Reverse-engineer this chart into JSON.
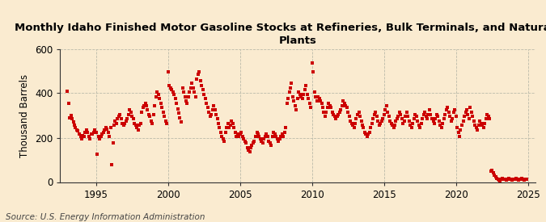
{
  "title": "Monthly Idaho Finished Motor Gasoline Stocks at Refineries, Bulk Terminals, and Natural Gas\nPlants",
  "ylabel": "Thousand Barrels",
  "source": "Source: U.S. Energy Information Administration",
  "background_color": "#faebd0",
  "plot_bg_color": "#faebd0",
  "dot_color": "#cc0000",
  "dot_size": 7,
  "xlim": [
    1992.5,
    2025.5
  ],
  "ylim": [
    0,
    600
  ],
  "yticks": [
    0,
    200,
    400,
    600
  ],
  "xticks": [
    1995,
    2000,
    2005,
    2010,
    2015,
    2020,
    2025
  ],
  "data": [
    [
      1993.0,
      410
    ],
    [
      1993.08,
      355
    ],
    [
      1993.17,
      290
    ],
    [
      1993.25,
      300
    ],
    [
      1993.33,
      285
    ],
    [
      1993.42,
      270
    ],
    [
      1993.5,
      255
    ],
    [
      1993.58,
      245
    ],
    [
      1993.67,
      235
    ],
    [
      1993.75,
      230
    ],
    [
      1993.83,
      215
    ],
    [
      1993.92,
      205
    ],
    [
      1994.0,
      195
    ],
    [
      1994.08,
      210
    ],
    [
      1994.17,
      205
    ],
    [
      1994.25,
      225
    ],
    [
      1994.33,
      235
    ],
    [
      1994.42,
      225
    ],
    [
      1994.5,
      205
    ],
    [
      1994.58,
      195
    ],
    [
      1994.67,
      215
    ],
    [
      1994.75,
      215
    ],
    [
      1994.83,
      225
    ],
    [
      1994.92,
      235
    ],
    [
      1995.0,
      225
    ],
    [
      1995.08,
      125
    ],
    [
      1995.17,
      205
    ],
    [
      1995.25,
      195
    ],
    [
      1995.33,
      205
    ],
    [
      1995.42,
      215
    ],
    [
      1995.5,
      225
    ],
    [
      1995.58,
      235
    ],
    [
      1995.67,
      245
    ],
    [
      1995.75,
      240
    ],
    [
      1995.83,
      225
    ],
    [
      1995.92,
      205
    ],
    [
      1996.0,
      245
    ],
    [
      1996.08,
      78
    ],
    [
      1996.17,
      175
    ],
    [
      1996.25,
      255
    ],
    [
      1996.33,
      275
    ],
    [
      1996.42,
      265
    ],
    [
      1996.5,
      285
    ],
    [
      1996.58,
      295
    ],
    [
      1996.67,
      305
    ],
    [
      1996.75,
      285
    ],
    [
      1996.83,
      265
    ],
    [
      1996.92,
      255
    ],
    [
      1997.0,
      265
    ],
    [
      1997.08,
      275
    ],
    [
      1997.17,
      285
    ],
    [
      1997.25,
      305
    ],
    [
      1997.33,
      325
    ],
    [
      1997.42,
      315
    ],
    [
      1997.5,
      295
    ],
    [
      1997.58,
      285
    ],
    [
      1997.67,
      265
    ],
    [
      1997.75,
      255
    ],
    [
      1997.83,
      245
    ],
    [
      1997.92,
      235
    ],
    [
      1998.0,
      255
    ],
    [
      1998.08,
      265
    ],
    [
      1998.17,
      315
    ],
    [
      1998.25,
      335
    ],
    [
      1998.33,
      345
    ],
    [
      1998.42,
      355
    ],
    [
      1998.5,
      345
    ],
    [
      1998.58,
      325
    ],
    [
      1998.67,
      305
    ],
    [
      1998.75,
      295
    ],
    [
      1998.83,
      275
    ],
    [
      1998.92,
      265
    ],
    [
      1999.0,
      305
    ],
    [
      1999.08,
      345
    ],
    [
      1999.17,
      385
    ],
    [
      1999.25,
      405
    ],
    [
      1999.33,
      395
    ],
    [
      1999.42,
      375
    ],
    [
      1999.5,
      355
    ],
    [
      1999.58,
      335
    ],
    [
      1999.67,
      315
    ],
    [
      1999.75,
      295
    ],
    [
      1999.83,
      275
    ],
    [
      1999.92,
      265
    ],
    [
      2000.0,
      495
    ],
    [
      2000.08,
      435
    ],
    [
      2000.17,
      425
    ],
    [
      2000.25,
      415
    ],
    [
      2000.33,
      405
    ],
    [
      2000.42,
      395
    ],
    [
      2000.5,
      375
    ],
    [
      2000.58,
      355
    ],
    [
      2000.67,
      330
    ],
    [
      2000.75,
      310
    ],
    [
      2000.83,
      290
    ],
    [
      2000.92,
      270
    ],
    [
      2001.0,
      425
    ],
    [
      2001.08,
      405
    ],
    [
      2001.17,
      385
    ],
    [
      2001.25,
      365
    ],
    [
      2001.33,
      355
    ],
    [
      2001.42,
      385
    ],
    [
      2001.5,
      405
    ],
    [
      2001.58,
      425
    ],
    [
      2001.67,
      445
    ],
    [
      2001.75,
      425
    ],
    [
      2001.83,
      405
    ],
    [
      2001.92,
      385
    ],
    [
      2002.0,
      465
    ],
    [
      2002.08,
      485
    ],
    [
      2002.17,
      495
    ],
    [
      2002.25,
      455
    ],
    [
      2002.33,
      435
    ],
    [
      2002.42,
      415
    ],
    [
      2002.5,
      395
    ],
    [
      2002.58,
      375
    ],
    [
      2002.67,
      355
    ],
    [
      2002.75,
      335
    ],
    [
      2002.83,
      315
    ],
    [
      2002.92,
      295
    ],
    [
      2003.0,
      305
    ],
    [
      2003.08,
      325
    ],
    [
      2003.17,
      345
    ],
    [
      2003.25,
      325
    ],
    [
      2003.33,
      305
    ],
    [
      2003.42,
      285
    ],
    [
      2003.5,
      265
    ],
    [
      2003.58,
      245
    ],
    [
      2003.67,
      225
    ],
    [
      2003.75,
      205
    ],
    [
      2003.83,
      195
    ],
    [
      2003.92,
      185
    ],
    [
      2004.0,
      225
    ],
    [
      2004.08,
      245
    ],
    [
      2004.17,
      265
    ],
    [
      2004.25,
      245
    ],
    [
      2004.33,
      255
    ],
    [
      2004.42,
      275
    ],
    [
      2004.5,
      265
    ],
    [
      2004.58,
      245
    ],
    [
      2004.67,
      225
    ],
    [
      2004.75,
      205
    ],
    [
      2004.83,
      215
    ],
    [
      2004.92,
      205
    ],
    [
      2005.0,
      215
    ],
    [
      2005.08,
      225
    ],
    [
      2005.17,
      205
    ],
    [
      2005.25,
      195
    ],
    [
      2005.33,
      185
    ],
    [
      2005.42,
      175
    ],
    [
      2005.5,
      155
    ],
    [
      2005.58,
      145
    ],
    [
      2005.67,
      135
    ],
    [
      2005.75,
      155
    ],
    [
      2005.83,
      165
    ],
    [
      2005.92,
      175
    ],
    [
      2006.0,
      185
    ],
    [
      2006.08,
      205
    ],
    [
      2006.17,
      225
    ],
    [
      2006.25,
      215
    ],
    [
      2006.33,
      205
    ],
    [
      2006.42,
      195
    ],
    [
      2006.5,
      185
    ],
    [
      2006.58,
      175
    ],
    [
      2006.67,
      195
    ],
    [
      2006.75,
      205
    ],
    [
      2006.83,
      215
    ],
    [
      2006.92,
      205
    ],
    [
      2007.0,
      185
    ],
    [
      2007.08,
      175
    ],
    [
      2007.17,
      165
    ],
    [
      2007.25,
      205
    ],
    [
      2007.33,
      225
    ],
    [
      2007.42,
      215
    ],
    [
      2007.5,
      205
    ],
    [
      2007.58,
      195
    ],
    [
      2007.67,
      185
    ],
    [
      2007.75,
      195
    ],
    [
      2007.83,
      205
    ],
    [
      2007.92,
      215
    ],
    [
      2008.0,
      205
    ],
    [
      2008.08,
      225
    ],
    [
      2008.17,
      245
    ],
    [
      2008.25,
      355
    ],
    [
      2008.33,
      375
    ],
    [
      2008.42,
      405
    ],
    [
      2008.5,
      425
    ],
    [
      2008.58,
      445
    ],
    [
      2008.67,
      385
    ],
    [
      2008.75,
      365
    ],
    [
      2008.83,
      345
    ],
    [
      2008.92,
      325
    ],
    [
      2009.0,
      375
    ],
    [
      2009.08,
      405
    ],
    [
      2009.17,
      395
    ],
    [
      2009.25,
      385
    ],
    [
      2009.33,
      375
    ],
    [
      2009.42,
      395
    ],
    [
      2009.5,
      415
    ],
    [
      2009.58,
      435
    ],
    [
      2009.67,
      395
    ],
    [
      2009.75,
      375
    ],
    [
      2009.83,
      355
    ],
    [
      2009.92,
      335
    ],
    [
      2010.0,
      535
    ],
    [
      2010.08,
      495
    ],
    [
      2010.17,
      405
    ],
    [
      2010.25,
      385
    ],
    [
      2010.33,
      365
    ],
    [
      2010.42,
      385
    ],
    [
      2010.5,
      375
    ],
    [
      2010.58,
      365
    ],
    [
      2010.67,
      355
    ],
    [
      2010.75,
      335
    ],
    [
      2010.83,
      315
    ],
    [
      2010.92,
      295
    ],
    [
      2011.0,
      315
    ],
    [
      2011.08,
      335
    ],
    [
      2011.17,
      355
    ],
    [
      2011.25,
      345
    ],
    [
      2011.33,
      335
    ],
    [
      2011.42,
      315
    ],
    [
      2011.5,
      305
    ],
    [
      2011.58,
      295
    ],
    [
      2011.67,
      285
    ],
    [
      2011.75,
      295
    ],
    [
      2011.83,
      305
    ],
    [
      2011.92,
      315
    ],
    [
      2012.0,
      325
    ],
    [
      2012.08,
      345
    ],
    [
      2012.17,
      365
    ],
    [
      2012.25,
      355
    ],
    [
      2012.33,
      345
    ],
    [
      2012.42,
      335
    ],
    [
      2012.5,
      315
    ],
    [
      2012.58,
      295
    ],
    [
      2012.67,
      275
    ],
    [
      2012.75,
      265
    ],
    [
      2012.83,
      255
    ],
    [
      2012.92,
      245
    ],
    [
      2013.0,
      265
    ],
    [
      2013.08,
      285
    ],
    [
      2013.17,
      305
    ],
    [
      2013.25,
      315
    ],
    [
      2013.33,
      295
    ],
    [
      2013.42,
      275
    ],
    [
      2013.5,
      255
    ],
    [
      2013.58,
      245
    ],
    [
      2013.67,
      225
    ],
    [
      2013.75,
      215
    ],
    [
      2013.83,
      205
    ],
    [
      2013.92,
      215
    ],
    [
      2014.0,
      225
    ],
    [
      2014.08,
      245
    ],
    [
      2014.17,
      265
    ],
    [
      2014.25,
      285
    ],
    [
      2014.33,
      305
    ],
    [
      2014.42,
      315
    ],
    [
      2014.5,
      295
    ],
    [
      2014.58,
      275
    ],
    [
      2014.67,
      255
    ],
    [
      2014.75,
      265
    ],
    [
      2014.83,
      275
    ],
    [
      2014.92,
      285
    ],
    [
      2015.0,
      305
    ],
    [
      2015.08,
      325
    ],
    [
      2015.17,
      345
    ],
    [
      2015.25,
      315
    ],
    [
      2015.33,
      295
    ],
    [
      2015.42,
      275
    ],
    [
      2015.5,
      265
    ],
    [
      2015.58,
      255
    ],
    [
      2015.67,
      245
    ],
    [
      2015.75,
      255
    ],
    [
      2015.83,
      275
    ],
    [
      2015.92,
      285
    ],
    [
      2016.0,
      295
    ],
    [
      2016.08,
      315
    ],
    [
      2016.17,
      305
    ],
    [
      2016.25,
      285
    ],
    [
      2016.33,
      265
    ],
    [
      2016.42,
      275
    ],
    [
      2016.5,
      295
    ],
    [
      2016.58,
      315
    ],
    [
      2016.67,
      295
    ],
    [
      2016.75,
      275
    ],
    [
      2016.83,
      255
    ],
    [
      2016.92,
      245
    ],
    [
      2017.0,
      265
    ],
    [
      2017.08,
      285
    ],
    [
      2017.17,
      305
    ],
    [
      2017.25,
      295
    ],
    [
      2017.33,
      275
    ],
    [
      2017.42,
      255
    ],
    [
      2017.5,
      245
    ],
    [
      2017.58,
      265
    ],
    [
      2017.67,
      285
    ],
    [
      2017.75,
      305
    ],
    [
      2017.83,
      315
    ],
    [
      2017.92,
      295
    ],
    [
      2018.0,
      285
    ],
    [
      2018.08,
      305
    ],
    [
      2018.17,
      325
    ],
    [
      2018.25,
      305
    ],
    [
      2018.33,
      285
    ],
    [
      2018.42,
      275
    ],
    [
      2018.5,
      265
    ],
    [
      2018.58,
      285
    ],
    [
      2018.67,
      305
    ],
    [
      2018.75,
      295
    ],
    [
      2018.83,
      275
    ],
    [
      2018.92,
      255
    ],
    [
      2019.0,
      245
    ],
    [
      2019.08,
      265
    ],
    [
      2019.17,
      285
    ],
    [
      2019.25,
      305
    ],
    [
      2019.33,
      325
    ],
    [
      2019.42,
      335
    ],
    [
      2019.5,
      315
    ],
    [
      2019.58,
      295
    ],
    [
      2019.67,
      275
    ],
    [
      2019.75,
      285
    ],
    [
      2019.83,
      315
    ],
    [
      2019.92,
      325
    ],
    [
      2020.0,
      295
    ],
    [
      2020.08,
      245
    ],
    [
      2020.17,
      225
    ],
    [
      2020.25,
      205
    ],
    [
      2020.33,
      235
    ],
    [
      2020.42,
      255
    ],
    [
      2020.5,
      275
    ],
    [
      2020.58,
      295
    ],
    [
      2020.67,
      315
    ],
    [
      2020.75,
      325
    ],
    [
      2020.83,
      305
    ],
    [
      2020.92,
      285
    ],
    [
      2021.0,
      335
    ],
    [
      2021.08,
      315
    ],
    [
      2021.17,
      295
    ],
    [
      2021.25,
      275
    ],
    [
      2021.33,
      255
    ],
    [
      2021.42,
      245
    ],
    [
      2021.5,
      235
    ],
    [
      2021.58,
      255
    ],
    [
      2021.67,
      275
    ],
    [
      2021.75,
      265
    ],
    [
      2021.83,
      255
    ],
    [
      2021.92,
      245
    ],
    [
      2022.0,
      265
    ],
    [
      2022.08,
      285
    ],
    [
      2022.17,
      305
    ],
    [
      2022.25,
      295
    ],
    [
      2022.33,
      285
    ],
    [
      2022.42,
      48
    ],
    [
      2022.5,
      52
    ],
    [
      2022.58,
      42
    ],
    [
      2022.67,
      32
    ],
    [
      2022.75,
      22
    ],
    [
      2022.83,
      17
    ],
    [
      2022.92,
      12
    ],
    [
      2023.0,
      9
    ],
    [
      2023.08,
      6
    ],
    [
      2023.17,
      11
    ],
    [
      2023.25,
      16
    ],
    [
      2023.33,
      13
    ],
    [
      2023.42,
      11
    ],
    [
      2023.5,
      9
    ],
    [
      2023.58,
      11
    ],
    [
      2023.67,
      16
    ],
    [
      2023.75,
      13
    ],
    [
      2023.83,
      11
    ],
    [
      2023.92,
      9
    ],
    [
      2024.0,
      11
    ],
    [
      2024.08,
      13
    ],
    [
      2024.17,
      16
    ],
    [
      2024.25,
      11
    ],
    [
      2024.33,
      9
    ],
    [
      2024.42,
      11
    ],
    [
      2024.5,
      13
    ],
    [
      2024.58,
      16
    ],
    [
      2024.67,
      11
    ],
    [
      2024.75,
      9
    ],
    [
      2024.83,
      11
    ],
    [
      2024.92,
      13
    ]
  ]
}
